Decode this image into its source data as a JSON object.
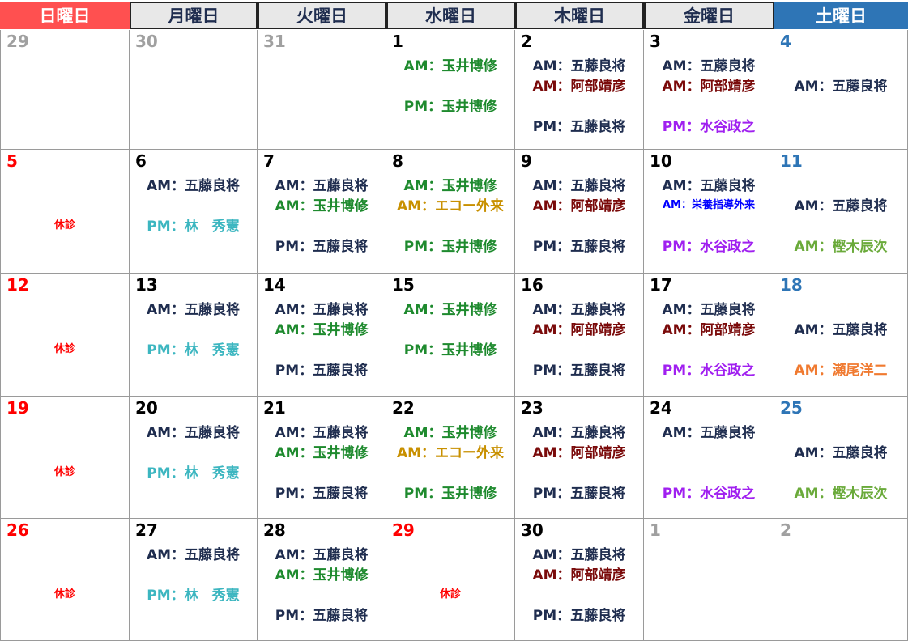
{
  "weekdays": [
    "日曜日",
    "月曜日",
    "火曜日",
    "水曜日",
    "木曜日",
    "金曜日",
    "土曜日"
  ],
  "colors": {
    "header_sun": "#ff5050",
    "header_sat": "#2e75b6",
    "num_sun": "#ff0000",
    "num_sat": "#2e75b6",
    "num_day": "#000000",
    "num_other": "#a0a0a0",
    "goto": "#1f2d4f",
    "tamai": "#1e8a2e",
    "abe": "#7a0a0a",
    "mizutani": "#a020f0",
    "hayashi": "#3cb6c0",
    "echo": "#c89000",
    "eiyo": "#0000ff",
    "kashiki": "#6aaa3a",
    "seo": "#f07a30",
    "closed": "#ff0000"
  },
  "weeks": [
    [
      {
        "day": "29",
        "nc": "num_other",
        "lines": [
          null,
          null,
          null,
          null
        ]
      },
      {
        "day": "30",
        "nc": "num_other",
        "lines": [
          null,
          null,
          null,
          null
        ]
      },
      {
        "day": "31",
        "nc": "num_other",
        "lines": [
          null,
          null,
          null,
          null
        ]
      },
      {
        "day": "1",
        "nc": "num_day",
        "lines": [
          {
            "t": "AM：玉井博修",
            "c": "tamai"
          },
          null,
          {
            "t": "PM：玉井博修",
            "c": "tamai"
          },
          null
        ]
      },
      {
        "day": "2",
        "nc": "num_day",
        "lines": [
          {
            "t": "AM：五藤良将",
            "c": "goto"
          },
          {
            "t": "AM：阿部靖彦",
            "c": "abe"
          },
          null,
          {
            "t": "PM：五藤良将",
            "c": "goto"
          }
        ]
      },
      {
        "day": "3",
        "nc": "num_day",
        "lines": [
          {
            "t": "AM：五藤良将",
            "c": "goto"
          },
          {
            "t": "AM：阿部靖彦",
            "c": "abe"
          },
          null,
          {
            "t": "PM：水谷政之",
            "c": "mizutani"
          }
        ]
      },
      {
        "day": "4",
        "nc": "num_sat",
        "lines": [
          null,
          {
            "t": "AM：五藤良将",
            "c": "goto"
          },
          null,
          null
        ]
      }
    ],
    [
      {
        "day": "5",
        "nc": "num_sun",
        "lines": [
          null,
          null,
          {
            "t": "休診",
            "c": "closed",
            "small": true
          },
          null
        ]
      },
      {
        "day": "6",
        "nc": "num_day",
        "lines": [
          {
            "t": "AM：五藤良将",
            "c": "goto"
          },
          null,
          {
            "t": "PM：林　秀憲",
            "c": "hayashi"
          },
          null
        ]
      },
      {
        "day": "7",
        "nc": "num_day",
        "lines": [
          {
            "t": "AM：五藤良将",
            "c": "goto"
          },
          {
            "t": "AM：玉井博修",
            "c": "tamai"
          },
          null,
          {
            "t": "PM：五藤良将",
            "c": "goto"
          }
        ]
      },
      {
        "day": "8",
        "nc": "num_day",
        "lines": [
          {
            "t": "AM：玉井博修",
            "c": "tamai"
          },
          {
            "t": "AM：エコー外来",
            "c": "echo"
          },
          null,
          {
            "t": "PM：玉井博修",
            "c": "tamai"
          }
        ]
      },
      {
        "day": "9",
        "nc": "num_day",
        "lines": [
          {
            "t": "AM：五藤良将",
            "c": "goto"
          },
          {
            "t": "AM：阿部靖彦",
            "c": "abe"
          },
          null,
          {
            "t": "PM：五藤良将",
            "c": "goto"
          }
        ]
      },
      {
        "day": "10",
        "nc": "num_day",
        "lines": [
          {
            "t": "AM：五藤良将",
            "c": "goto"
          },
          {
            "t": "AM：栄養指導外来",
            "c": "eiyo",
            "small": true
          },
          null,
          {
            "t": "PM：水谷政之",
            "c": "mizutani"
          }
        ]
      },
      {
        "day": "11",
        "nc": "num_sat",
        "lines": [
          null,
          {
            "t": "AM：五藤良将",
            "c": "goto"
          },
          null,
          {
            "t": "AM：樫木辰次",
            "c": "kashiki"
          }
        ]
      }
    ],
    [
      {
        "day": "12",
        "nc": "num_sun",
        "lines": [
          null,
          null,
          {
            "t": "休診",
            "c": "closed",
            "small": true
          },
          null
        ]
      },
      {
        "day": "13",
        "nc": "num_day",
        "lines": [
          {
            "t": "AM：五藤良将",
            "c": "goto"
          },
          null,
          {
            "t": "PM：林　秀憲",
            "c": "hayashi"
          },
          null
        ]
      },
      {
        "day": "14",
        "nc": "num_day",
        "lines": [
          {
            "t": "AM：五藤良将",
            "c": "goto"
          },
          {
            "t": "AM：玉井博修",
            "c": "tamai"
          },
          null,
          {
            "t": "PM：五藤良将",
            "c": "goto"
          }
        ]
      },
      {
        "day": "15",
        "nc": "num_day",
        "lines": [
          {
            "t": "AM：玉井博修",
            "c": "tamai"
          },
          null,
          {
            "t": "PM：玉井博修",
            "c": "tamai"
          },
          null
        ]
      },
      {
        "day": "16",
        "nc": "num_day",
        "lines": [
          {
            "t": "AM：五藤良将",
            "c": "goto"
          },
          {
            "t": "AM：阿部靖彦",
            "c": "abe"
          },
          null,
          {
            "t": "PM：五藤良将",
            "c": "goto"
          }
        ]
      },
      {
        "day": "17",
        "nc": "num_day",
        "lines": [
          {
            "t": "AM：五藤良将",
            "c": "goto"
          },
          {
            "t": "AM：阿部靖彦",
            "c": "abe"
          },
          null,
          {
            "t": "PM：水谷政之",
            "c": "mizutani"
          }
        ]
      },
      {
        "day": "18",
        "nc": "num_sat",
        "lines": [
          null,
          {
            "t": "AM：五藤良将",
            "c": "goto"
          },
          null,
          {
            "t": "AM：瀬尾洋二",
            "c": "seo"
          }
        ]
      }
    ],
    [
      {
        "day": "19",
        "nc": "num_sun",
        "lines": [
          null,
          null,
          {
            "t": "休診",
            "c": "closed",
            "small": true
          },
          null
        ]
      },
      {
        "day": "20",
        "nc": "num_day",
        "lines": [
          {
            "t": "AM：五藤良将",
            "c": "goto"
          },
          null,
          {
            "t": "PM：林　秀憲",
            "c": "hayashi"
          },
          null
        ]
      },
      {
        "day": "21",
        "nc": "num_day",
        "lines": [
          {
            "t": "AM：五藤良将",
            "c": "goto"
          },
          {
            "t": "AM：玉井博修",
            "c": "tamai"
          },
          null,
          {
            "t": "PM：五藤良将",
            "c": "goto"
          }
        ]
      },
      {
        "day": "22",
        "nc": "num_day",
        "lines": [
          {
            "t": "AM：玉井博修",
            "c": "tamai"
          },
          {
            "t": "AM：エコー外来",
            "c": "echo"
          },
          null,
          {
            "t": "PM：玉井博修",
            "c": "tamai"
          }
        ]
      },
      {
        "day": "23",
        "nc": "num_day",
        "lines": [
          {
            "t": "AM：五藤良将",
            "c": "goto"
          },
          {
            "t": "AM：阿部靖彦",
            "c": "abe"
          },
          null,
          {
            "t": "PM：五藤良将",
            "c": "goto"
          }
        ]
      },
      {
        "day": "24",
        "nc": "num_day",
        "lines": [
          {
            "t": "AM：五藤良将",
            "c": "goto"
          },
          null,
          null,
          {
            "t": "PM：水谷政之",
            "c": "mizutani"
          }
        ]
      },
      {
        "day": "25",
        "nc": "num_sat",
        "lines": [
          null,
          {
            "t": "AM：五藤良将",
            "c": "goto"
          },
          null,
          {
            "t": "AM：樫木辰次",
            "c": "kashiki"
          }
        ]
      }
    ],
    [
      {
        "day": "26",
        "nc": "num_sun",
        "lines": [
          null,
          null,
          {
            "t": "休診",
            "c": "closed",
            "small": true
          },
          null
        ]
      },
      {
        "day": "27",
        "nc": "num_day",
        "lines": [
          {
            "t": "AM：五藤良将",
            "c": "goto"
          },
          null,
          {
            "t": "PM：林　秀憲",
            "c": "hayashi"
          },
          null
        ]
      },
      {
        "day": "28",
        "nc": "num_day",
        "lines": [
          {
            "t": "AM：五藤良将",
            "c": "goto"
          },
          {
            "t": "AM：玉井博修",
            "c": "tamai"
          },
          null,
          {
            "t": "PM：五藤良将",
            "c": "goto"
          }
        ]
      },
      {
        "day": "29",
        "nc": "num_sun",
        "lines": [
          null,
          null,
          {
            "t": "休診",
            "c": "closed",
            "small": true
          },
          null
        ]
      },
      {
        "day": "30",
        "nc": "num_day",
        "lines": [
          {
            "t": "AM：五藤良将",
            "c": "goto"
          },
          {
            "t": "AM：阿部靖彦",
            "c": "abe"
          },
          null,
          {
            "t": "PM：五藤良将",
            "c": "goto"
          }
        ]
      },
      {
        "day": "1",
        "nc": "num_other",
        "lines": [
          null,
          null,
          null,
          null
        ]
      },
      {
        "day": "2",
        "nc": "num_other",
        "lines": [
          null,
          null,
          null,
          null
        ]
      }
    ]
  ]
}
